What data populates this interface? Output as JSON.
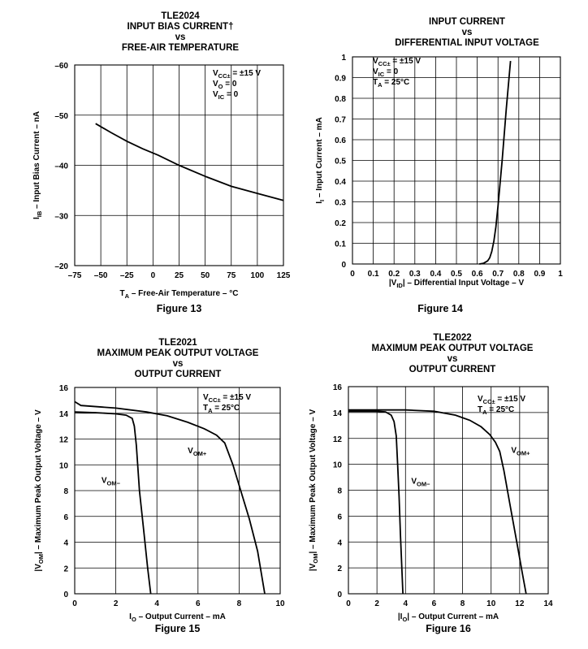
{
  "chart_data": [
    {
      "type": "line",
      "title_lines": [
        "TLE2024",
        "INPUT BIAS CURRENT†",
        "vs",
        "FREE-AIR TEMPERATURE"
      ],
      "xlabel": "T_A – Free-Air Temperature – °C",
      "ylabel": "I_IB – Input Bias Current – nA",
      "xlim": [
        -75,
        125
      ],
      "ylim": [
        -20,
        -60
      ],
      "x_ticks": [
        -75,
        -50,
        -25,
        0,
        25,
        50,
        75,
        100,
        125
      ],
      "y_ticks": [
        -20,
        -30,
        -40,
        -50,
        -60
      ],
      "x_tick_labels": [
        "–75",
        "–50",
        "–25",
        "0",
        "25",
        "50",
        "75",
        "100",
        "125"
      ],
      "y_tick_labels": [
        "–20",
        "–30",
        "–40",
        "–50",
        "–60"
      ],
      "conditions": [
        "V_CC± = ±15 V",
        "V_O = 0",
        "V_IC = 0"
      ],
      "series": [
        {
          "name": "I_IB",
          "x": [
            -55,
            -40,
            -25,
            -10,
            5,
            25,
            50,
            75,
            100,
            125
          ],
          "y": [
            -48.3,
            -46.5,
            -44.8,
            -43.3,
            -42.0,
            -40.0,
            -37.8,
            -35.8,
            -34.4,
            -33.0
          ]
        }
      ],
      "figure_label": "Figure 13"
    },
    {
      "type": "line",
      "title_lines": [
        "INPUT CURRENT",
        "vs",
        "DIFFERENTIAL INPUT VOLTAGE"
      ],
      "xlabel": "|V_ID| – Differential Input Voltage – V",
      "ylabel": "I_I – Input Current – mA",
      "xlim": [
        0,
        1
      ],
      "ylim": [
        0,
        1
      ],
      "x_ticks": [
        0,
        0.1,
        0.2,
        0.3,
        0.4,
        0.5,
        0.6,
        0.7,
        0.8,
        0.9,
        1
      ],
      "y_ticks": [
        0,
        0.1,
        0.2,
        0.3,
        0.4,
        0.5,
        0.6,
        0.7,
        0.8,
        0.9,
        1
      ],
      "x_tick_labels": [
        "0",
        "0.1",
        "0.2",
        "0.3",
        "0.4",
        "0.5",
        "0.6",
        "0.7",
        "0.8",
        "0.9",
        "1"
      ],
      "y_tick_labels": [
        "0",
        "0.1",
        "0.2",
        "0.3",
        "0.4",
        "0.5",
        "0.6",
        "0.7",
        "0.8",
        "0.9",
        "1"
      ],
      "conditions": [
        "V_CC± = ±15 V",
        "V_IC = 0",
        "T_A = 25°C"
      ],
      "series": [
        {
          "name": "I_I",
          "x": [
            0.61,
            0.63,
            0.65,
            0.66,
            0.67,
            0.68,
            0.69,
            0.7,
            0.72,
            0.74,
            0.76
          ],
          "y": [
            0,
            0.003,
            0.015,
            0.03,
            0.06,
            0.11,
            0.18,
            0.28,
            0.5,
            0.75,
            0.98
          ]
        }
      ],
      "figure_label": "Figure 14"
    },
    {
      "type": "line",
      "title_lines": [
        "TLE2021",
        "MAXIMUM PEAK OUTPUT VOLTAGE",
        "vs",
        "OUTPUT CURRENT"
      ],
      "xlabel": "I_O – Output Current – mA",
      "ylabel": "|V_OM| – Maximum Peak Output Voltage – V",
      "xlim": [
        0,
        10
      ],
      "ylim": [
        0,
        16
      ],
      "x_ticks": [
        0,
        2,
        4,
        6,
        8,
        10
      ],
      "y_ticks": [
        0,
        2,
        4,
        6,
        8,
        10,
        12,
        14,
        16
      ],
      "x_tick_labels": [
        "0",
        "2",
        "4",
        "6",
        "8",
        "10"
      ],
      "y_tick_labels": [
        "0",
        "2",
        "4",
        "6",
        "8",
        "10",
        "12",
        "14",
        "16"
      ],
      "conditions": [
        "V_CC± = ±15 V",
        "T_A = 25°C"
      ],
      "series": [
        {
          "name": "V_OM+",
          "x": [
            0,
            0.3,
            2,
            3.5,
            4.5,
            5.5,
            6.3,
            6.9,
            7.3,
            7.7,
            8.1,
            8.5,
            8.9,
            9.25
          ],
          "y": [
            14.9,
            14.6,
            14.4,
            14.1,
            13.8,
            13.3,
            12.8,
            12.3,
            11.7,
            10.0,
            7.9,
            5.8,
            3.3,
            0
          ]
        },
        {
          "name": "V_OM−",
          "x": [
            0,
            1,
            2,
            2.5,
            2.8,
            2.9,
            3.0,
            3.15,
            3.35,
            3.55,
            3.7
          ],
          "y": [
            14.1,
            14.05,
            13.95,
            13.85,
            13.6,
            13.0,
            11.5,
            8.0,
            5.0,
            2.0,
            0
          ]
        }
      ],
      "series_labels": [
        {
          "name": "V_OM+",
          "at": [
            5.5,
            10.9
          ]
        },
        {
          "name": "V_OM−",
          "at": [
            1.3,
            8.6
          ]
        }
      ],
      "figure_label": "Figure 15"
    },
    {
      "type": "line",
      "title_lines": [
        "TLE2022",
        "MAXIMUM PEAK OUTPUT VOLTAGE",
        "vs",
        "OUTPUT CURRENT"
      ],
      "xlabel": "|I_O| – Output Current – mA",
      "ylabel": "|V_OM| – Maximum Peak Output Voltage – V",
      "xlim": [
        0,
        14
      ],
      "ylim": [
        0,
        16
      ],
      "x_ticks": [
        0,
        2,
        4,
        6,
        8,
        10,
        12,
        14
      ],
      "y_ticks": [
        0,
        2,
        4,
        6,
        8,
        10,
        12,
        14,
        16
      ],
      "x_tick_labels": [
        "0",
        "2",
        "4",
        "6",
        "8",
        "10",
        "12",
        "14"
      ],
      "y_tick_labels": [
        "0",
        "2",
        "4",
        "6",
        "8",
        "10",
        "12",
        "14",
        "16"
      ],
      "conditions": [
        "V_CC± = ±15 V",
        "T_A = 25°C"
      ],
      "series": [
        {
          "name": "V_OM+",
          "x": [
            0,
            4,
            6,
            7.5,
            8.5,
            9.3,
            9.9,
            10.3,
            10.6,
            10.9,
            11.3,
            11.8,
            12.2,
            12.45
          ],
          "y": [
            14.2,
            14.2,
            14.1,
            13.8,
            13.4,
            12.9,
            12.3,
            11.7,
            11.0,
            9.5,
            7.0,
            4.0,
            1.5,
            0
          ]
        },
        {
          "name": "V_OM−",
          "x": [
            0,
            2,
            2.6,
            3.0,
            3.2,
            3.35,
            3.45,
            3.55,
            3.65,
            3.75,
            3.82
          ],
          "y": [
            14.1,
            14.1,
            14.05,
            13.8,
            13.3,
            12.2,
            10.0,
            7.5,
            4.5,
            1.8,
            0
          ]
        }
      ],
      "series_labels": [
        {
          "name": "V_OM+",
          "at": [
            11.4,
            10.9
          ]
        },
        {
          "name": "V_OM−",
          "at": [
            4.4,
            8.5
          ]
        }
      ],
      "figure_label": "Figure 16"
    }
  ]
}
